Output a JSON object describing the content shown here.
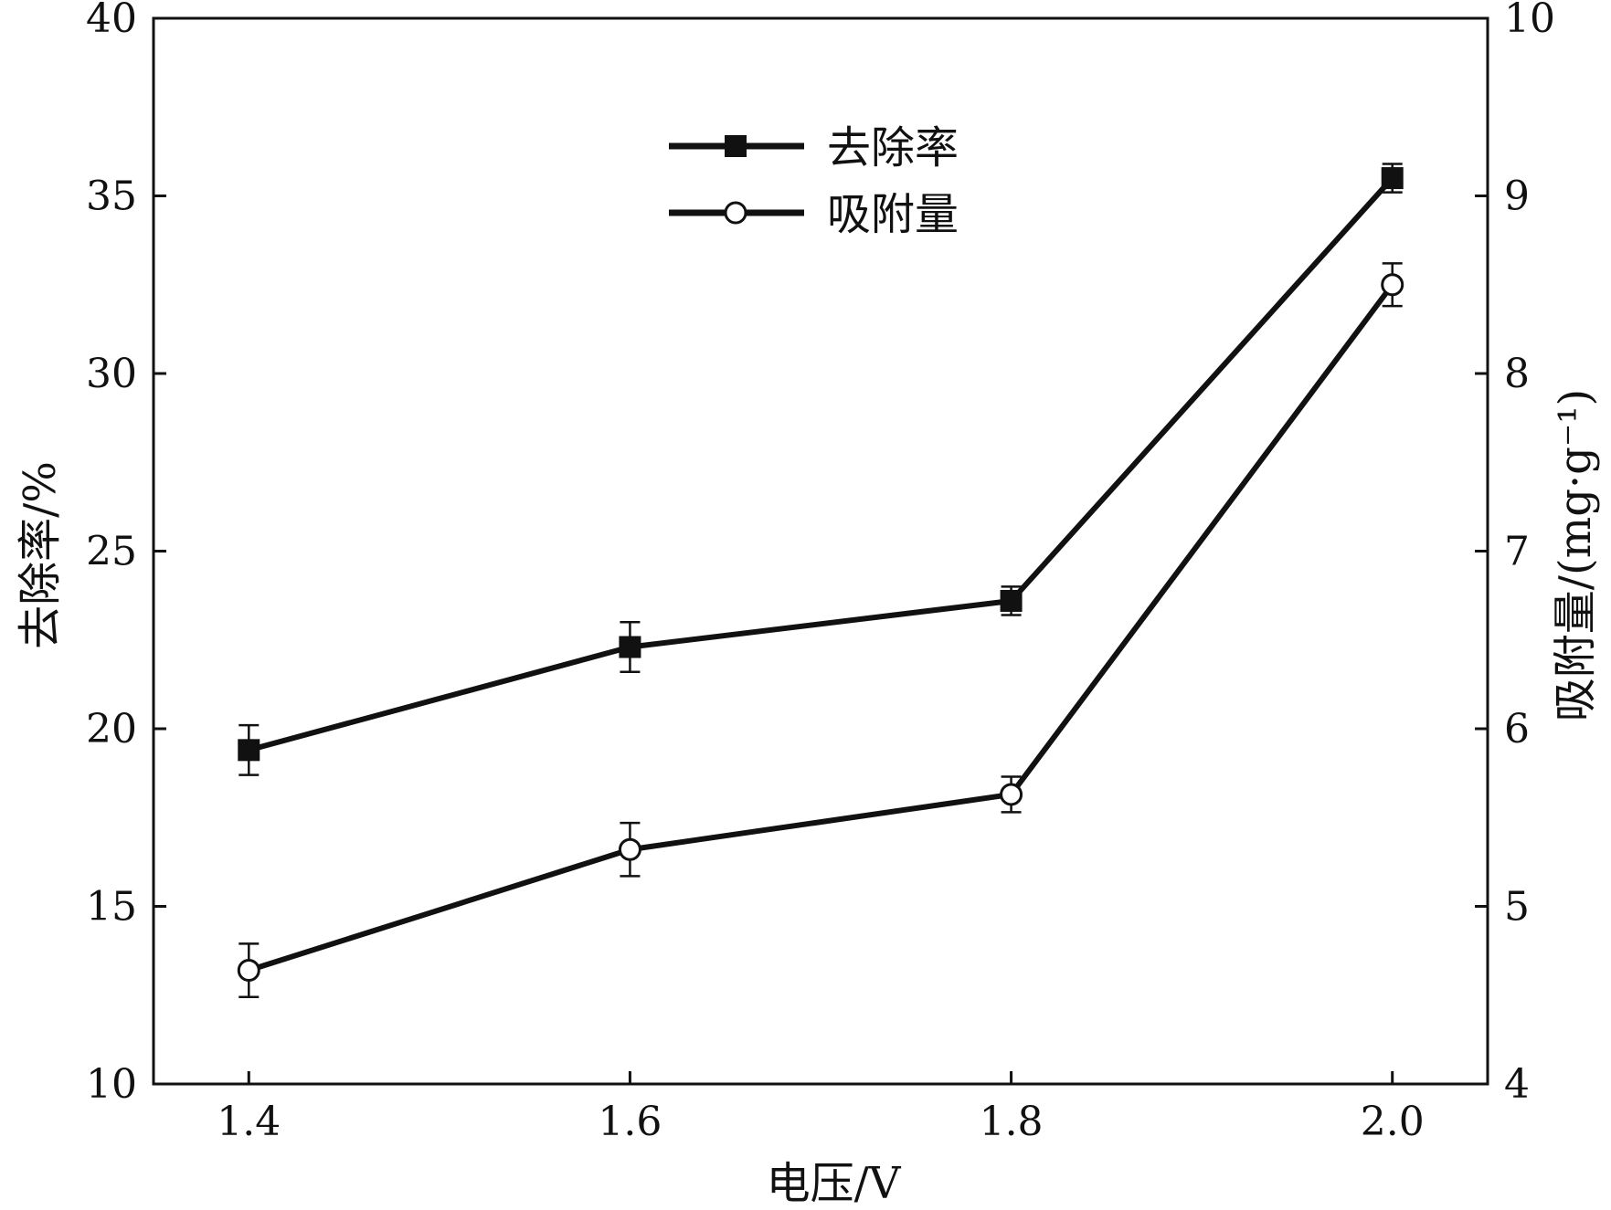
{
  "chart_data": {
    "type": "line",
    "xlabel": "电压/V",
    "ylabel_left": "去除率/%",
    "ylabel_right": "吸附量/(mg·g⁻¹)",
    "xlim": [
      1.35,
      2.05
    ],
    "ylim_left": [
      10,
      40
    ],
    "ylim_right": [
      4,
      10
    ],
    "x_ticks": [
      1.4,
      1.6,
      1.8,
      2.0
    ],
    "x_tick_labels": [
      "1.4",
      "1.6",
      "1.8",
      "2.0"
    ],
    "y_left_ticks": [
      10,
      15,
      20,
      25,
      30,
      35,
      40
    ],
    "y_left_tick_labels": [
      "10",
      "15",
      "20",
      "25",
      "30",
      "35",
      "40"
    ],
    "y_right_ticks": [
      4,
      5,
      6,
      7,
      8,
      9,
      10
    ],
    "y_right_tick_labels": [
      "4",
      "5",
      "6",
      "7",
      "8",
      "9",
      "10"
    ],
    "legend_position": "top-center",
    "grid": false,
    "series": [
      {
        "name": "去除率",
        "axis": "left",
        "marker": "filled-square",
        "x": [
          1.4,
          1.6,
          1.8,
          2.0
        ],
        "y": [
          19.4,
          22.3,
          23.6,
          35.5
        ],
        "error": [
          0.7,
          0.7,
          0.4,
          0.4
        ]
      },
      {
        "name": "吸附量",
        "axis": "right",
        "marker": "open-circle",
        "x": [
          1.4,
          1.6,
          1.8,
          2.0
        ],
        "y": [
          4.64,
          5.32,
          5.63,
          8.5
        ],
        "error": [
          0.15,
          0.15,
          0.1,
          0.12
        ]
      }
    ]
  }
}
